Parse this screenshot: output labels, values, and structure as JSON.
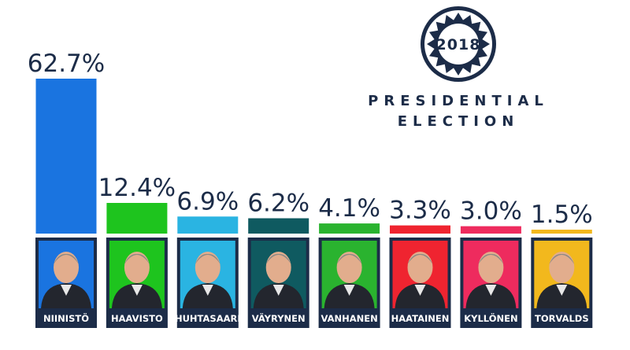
{
  "badge": {
    "year": "2018"
  },
  "title": {
    "line1": "PRESIDENTIAL",
    "line2": "ELECTION"
  },
  "colors": {
    "navy": "#1c2c48",
    "background": "#ffffff"
  },
  "chart_data": {
    "type": "bar",
    "categories": [
      "NIINISTÖ",
      "HAAVISTO",
      "HUHTASAARI",
      "VÄYRYNEN",
      "VANHANEN",
      "HAATAINEN",
      "KYLLÖNEN",
      "TORVALDS"
    ],
    "values": [
      62.7,
      12.4,
      6.9,
      6.2,
      4.1,
      3.3,
      3.0,
      1.5
    ],
    "labels": [
      "62.7%",
      "12.4%",
      "6.9%",
      "6.2%",
      "4.1%",
      "3.3%",
      "3.0%",
      "1.5%"
    ],
    "colors": [
      "#1a74e0",
      "#1ec41e",
      "#2ab4e2",
      "#0f5a60",
      "#2ab32f",
      "#ef2430",
      "#ee2b5e",
      "#f2b81d"
    ],
    "ylim": [
      0,
      62.7
    ],
    "grid": false,
    "legend": "none"
  },
  "candidates": [
    {
      "name": "NIINISTÖ",
      "photo_icon": "candidate-portrait-icon",
      "backdrop": "#1a74e0"
    },
    {
      "name": "HAAVISTO",
      "photo_icon": "candidate-portrait-icon",
      "backdrop": "#1ec41e"
    },
    {
      "name": "HUHTASAARI",
      "photo_icon": "candidate-portrait-icon",
      "backdrop": "#2ab4e2"
    },
    {
      "name": "VÄYRYNEN",
      "photo_icon": "candidate-portrait-icon",
      "backdrop": "#0f5a60"
    },
    {
      "name": "VANHANEN",
      "photo_icon": "candidate-portrait-icon",
      "backdrop": "#2ab32f"
    },
    {
      "name": "HAATAINEN",
      "photo_icon": "candidate-portrait-icon",
      "backdrop": "#ef2430"
    },
    {
      "name": "KYLLÖNEN",
      "photo_icon": "candidate-portrait-icon",
      "backdrop": "#ee2b5e"
    },
    {
      "name": "TORVALDS",
      "photo_icon": "candidate-portrait-icon",
      "backdrop": "#f2b81d"
    }
  ]
}
